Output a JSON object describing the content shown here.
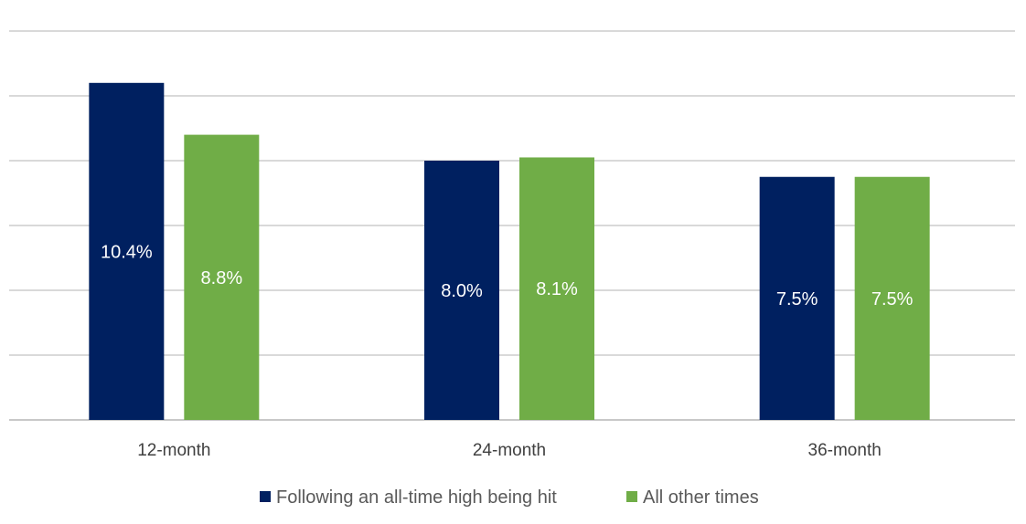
{
  "chart_data": {
    "type": "bar",
    "title": "",
    "xlabel": "",
    "ylabel": "",
    "categories": [
      "12-month",
      "24-month",
      "36-month"
    ],
    "series": [
      {
        "name": "Following an all-time high being hit",
        "color": "#002060",
        "values": [
          10.4,
          8.0,
          7.5
        ],
        "labels": [
          "10.4%",
          "8.0%",
          "7.5%"
        ]
      },
      {
        "name": "All other times",
        "color": "#70AD47",
        "values": [
          8.8,
          8.1,
          7.5
        ],
        "labels": [
          "8.8%",
          "8.1%",
          "7.5%"
        ]
      }
    ],
    "ylim": [
      0,
      12
    ],
    "ytick_step": 2,
    "grid": true,
    "legend_position": "bottom"
  }
}
